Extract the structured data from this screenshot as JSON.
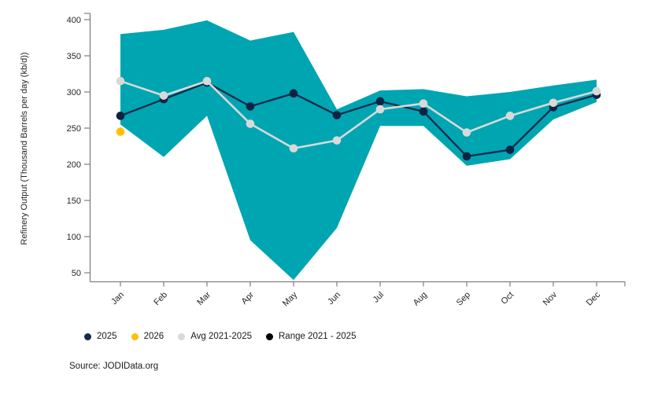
{
  "chart_data": {
    "type": "line",
    "title": "",
    "ylabel": "Refinery Output (Thousand Barrels per day (kb/d))",
    "xlabel": "",
    "categories": [
      "Jan",
      "Feb",
      "Mar",
      "Apr",
      "May",
      "Jun",
      "Jul",
      "Aug",
      "Sep",
      "Oct",
      "Nov",
      "Dec"
    ],
    "y_ticks": [
      50,
      100,
      150,
      200,
      250,
      300,
      350,
      400
    ],
    "ylim": [
      38,
      408
    ],
    "grid": false,
    "legend_position": "bottom",
    "series": [
      {
        "name": "Range 2021 - 2025",
        "type": "band",
        "color": "#00A5B2",
        "upper": [
          380,
          386,
          399,
          371,
          383,
          276,
          302,
          304,
          294,
          300,
          309,
          317
        ],
        "lower": [
          255,
          210,
          267,
          95,
          40,
          112,
          253,
          253,
          198,
          207,
          262,
          286
        ]
      },
      {
        "name": "2025",
        "type": "line",
        "color": "#15294B",
        "marker_color": "#0E2342",
        "values": [
          267,
          290,
          313,
          280,
          298,
          268,
          287,
          273,
          211,
          220,
          279,
          296
        ]
      },
      {
        "name": "Avg 2021-2025",
        "type": "line",
        "color": "#D9D9D9",
        "marker_color": "#D9D9D9",
        "values": [
          315,
          295,
          315,
          256,
          222,
          233,
          276,
          284,
          244,
          267,
          285,
          301
        ]
      },
      {
        "name": "2026",
        "type": "scatter",
        "color": "#FFC000",
        "values": [
          245,
          null,
          null,
          null,
          null,
          null,
          null,
          null,
          null,
          null,
          null,
          null
        ]
      }
    ],
    "legend": [
      {
        "label": "2025",
        "marker_color": "#15294B"
      },
      {
        "label": "2026",
        "marker_color": "#FFC000"
      },
      {
        "label": "Avg 2021-2025",
        "marker_color": "#D9D9D9"
      },
      {
        "label": "Range 2021 - 2025",
        "marker_color": "#000000"
      }
    ],
    "source": "Source: JODIData.org",
    "axis_color": "#7F7F7F",
    "tick_label_color": "#262626"
  }
}
